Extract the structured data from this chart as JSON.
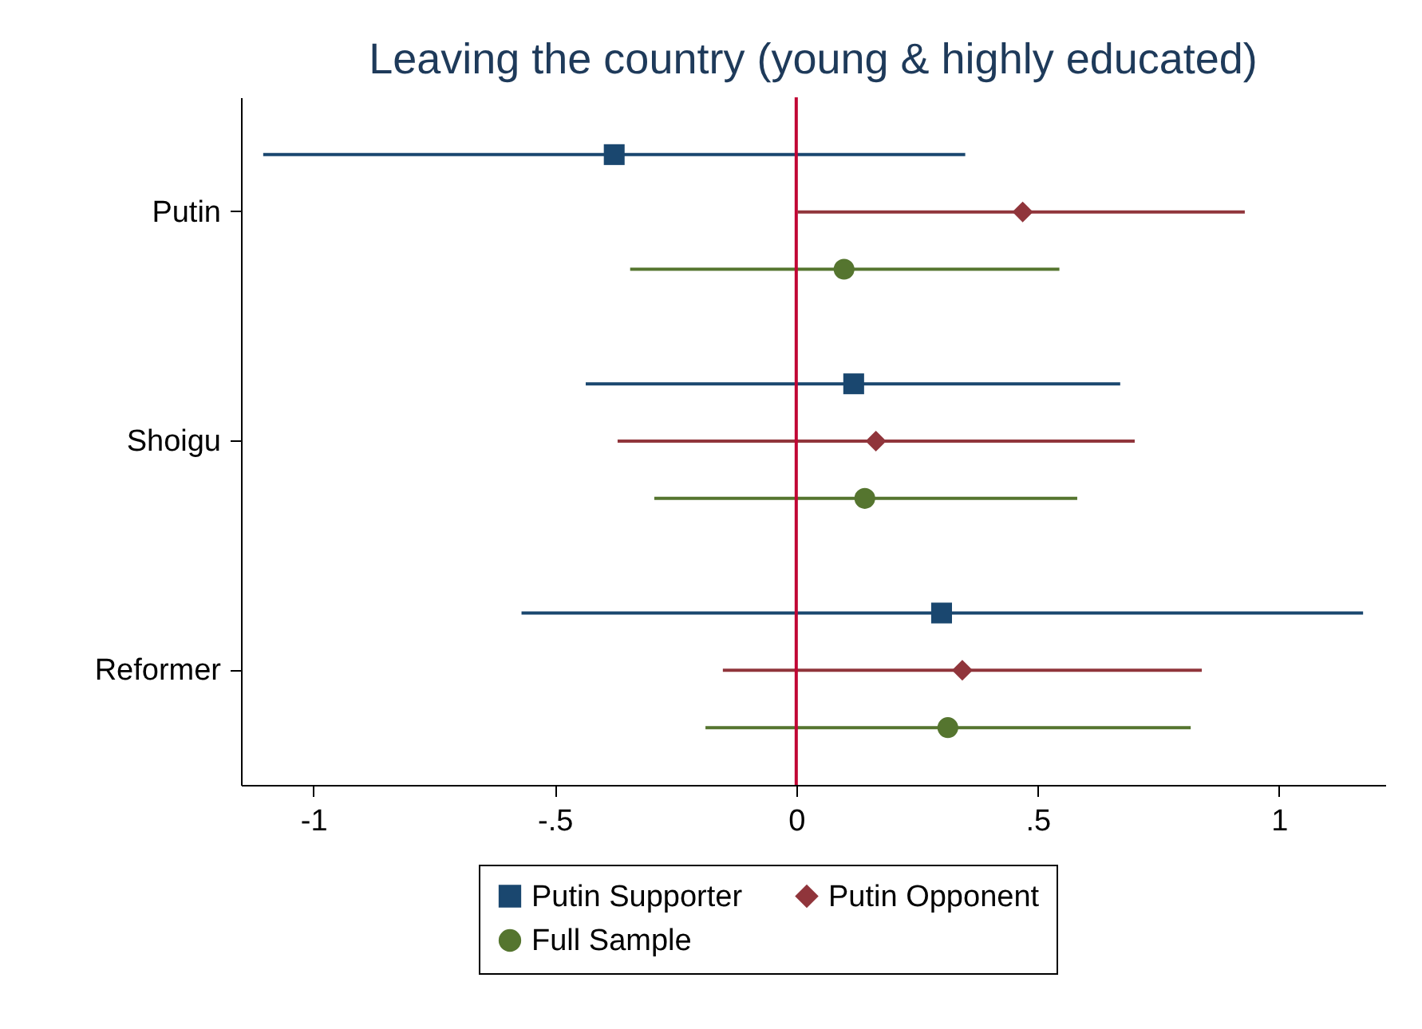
{
  "chart_data": {
    "type": "scatter",
    "orientation": "horizontal",
    "title": "Leaving the country (young & highly educated)",
    "categories": [
      "Putin",
      "Shoigu",
      "Reformer"
    ],
    "series": [
      {
        "name": "Putin Supporter",
        "color": "#1a476f",
        "marker": "square",
        "values": [
          -0.377,
          0.119,
          0.301
        ],
        "errors": [
          [
            -1.104,
            0.35
          ],
          [
            -0.436,
            0.671
          ],
          [
            -0.569,
            1.174
          ]
        ]
      },
      {
        "name": "Putin Opponent",
        "color": "#90353b",
        "marker": "diamond",
        "values": [
          0.469,
          0.165,
          0.344
        ],
        "errors": [
          [
            0.003,
            0.929
          ],
          [
            -0.37,
            0.701
          ],
          [
            -0.152,
            0.84
          ]
        ]
      },
      {
        "name": "Full Sample",
        "color": "#55752f",
        "marker": "circle",
        "values": [
          0.099,
          0.142,
          0.314
        ],
        "errors": [
          [
            -0.344,
            0.545
          ],
          [
            -0.294,
            0.582
          ],
          [
            -0.188,
            0.817
          ]
        ]
      }
    ],
    "xlim": [
      -1.15,
      1.22
    ],
    "xticks": [
      -1,
      {
        "value": -0.5,
        "label": "-.5"
      },
      0,
      {
        "value": 0.5,
        "label": ".5"
      },
      1
    ],
    "ref_lines": [
      {
        "axis": "x",
        "value": 0,
        "color": "#c10534"
      }
    ],
    "legend": "bottom"
  }
}
